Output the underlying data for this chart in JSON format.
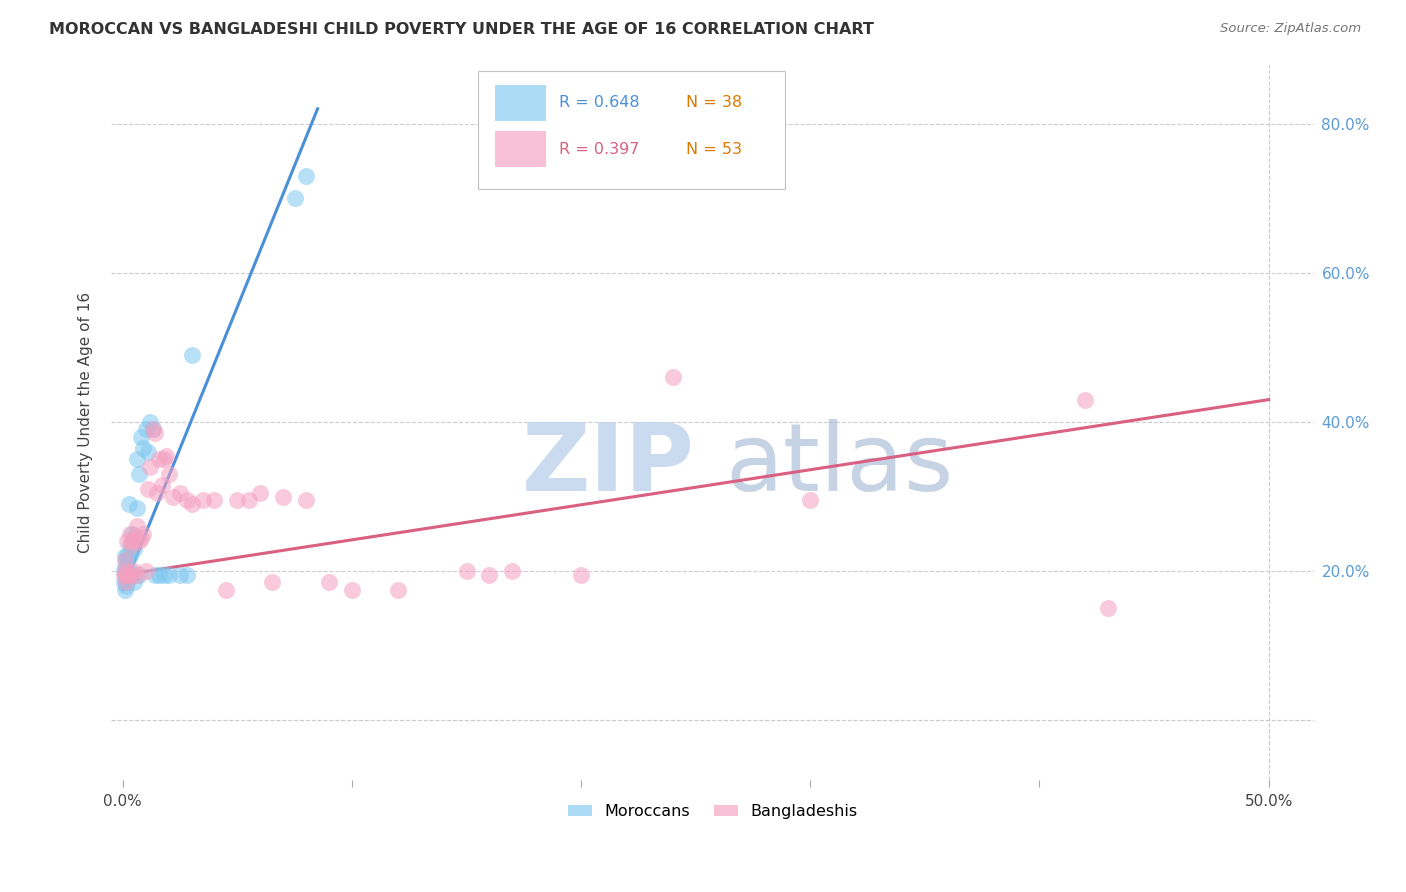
{
  "title": "MOROCCAN VS BANGLADESHI CHILD POVERTY UNDER THE AGE OF 16 CORRELATION CHART",
  "source": "Source: ZipAtlas.com",
  "ylabel": "Child Poverty Under the Age of 16",
  "xlim_min": -0.005,
  "xlim_max": 0.52,
  "ylim_min": -0.08,
  "ylim_max": 0.88,
  "background_color": "#ffffff",
  "grid_color": "#cccccc",
  "moroccan_color": "#7ec8f0",
  "bangladeshi_color": "#f5a0c0",
  "moroccan_line_color": "#4a90d9",
  "bangladeshi_line_color": "#d96080",
  "R_moroccan": 0.648,
  "N_moroccan": 38,
  "R_bangladeshi": 0.397,
  "N_bangladeshi": 53,
  "ytick_color": "#5b9bd5",
  "N_color": "#e07800",
  "moroccan_x": [
    0.0005,
    0.0005,
    0.001,
    0.001,
    0.001,
    0.001,
    0.0015,
    0.0015,
    0.002,
    0.002,
    0.002,
    0.0025,
    0.003,
    0.003,
    0.003,
    0.004,
    0.004,
    0.005,
    0.005,
    0.006,
    0.006,
    0.007,
    0.007,
    0.008,
    0.009,
    0.01,
    0.011,
    0.012,
    0.013,
    0.014,
    0.016,
    0.018,
    0.02,
    0.025,
    0.028,
    0.03,
    0.075,
    0.08
  ],
  "moroccan_y": [
    0.185,
    0.2,
    0.175,
    0.19,
    0.205,
    0.22,
    0.18,
    0.215,
    0.185,
    0.2,
    0.22,
    0.29,
    0.2,
    0.22,
    0.235,
    0.195,
    0.25,
    0.185,
    0.23,
    0.285,
    0.35,
    0.195,
    0.33,
    0.38,
    0.365,
    0.39,
    0.36,
    0.4,
    0.39,
    0.195,
    0.195,
    0.195,
    0.195,
    0.195,
    0.195,
    0.49,
    0.7,
    0.73
  ],
  "bangladeshi_x": [
    0.0005,
    0.001,
    0.001,
    0.0015,
    0.002,
    0.002,
    0.0025,
    0.003,
    0.003,
    0.004,
    0.004,
    0.005,
    0.005,
    0.006,
    0.006,
    0.007,
    0.008,
    0.009,
    0.01,
    0.011,
    0.012,
    0.013,
    0.014,
    0.015,
    0.016,
    0.017,
    0.018,
    0.019,
    0.02,
    0.022,
    0.025,
    0.028,
    0.03,
    0.035,
    0.04,
    0.045,
    0.05,
    0.055,
    0.06,
    0.065,
    0.07,
    0.08,
    0.09,
    0.1,
    0.12,
    0.15,
    0.16,
    0.17,
    0.2,
    0.24,
    0.3,
    0.42,
    0.43
  ],
  "bangladeshi_y": [
    0.195,
    0.2,
    0.215,
    0.185,
    0.195,
    0.24,
    0.195,
    0.195,
    0.25,
    0.235,
    0.24,
    0.2,
    0.245,
    0.195,
    0.26,
    0.24,
    0.245,
    0.25,
    0.2,
    0.31,
    0.34,
    0.39,
    0.385,
    0.305,
    0.35,
    0.315,
    0.35,
    0.355,
    0.33,
    0.3,
    0.305,
    0.295,
    0.29,
    0.295,
    0.295,
    0.175,
    0.295,
    0.295,
    0.305,
    0.185,
    0.3,
    0.295,
    0.185,
    0.175,
    0.175,
    0.2,
    0.195,
    0.2,
    0.195,
    0.46,
    0.295,
    0.43,
    0.15
  ]
}
